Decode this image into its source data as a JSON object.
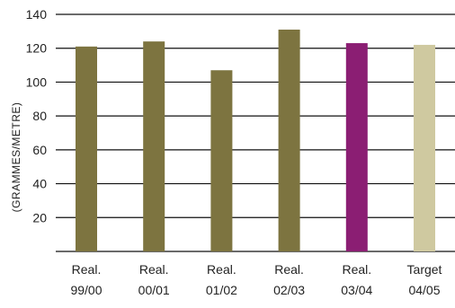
{
  "chart_data": {
    "type": "bar",
    "ylabel": "(GRAMMES/METRE)",
    "ylim": [
      0,
      140
    ],
    "yticks": [
      20,
      40,
      60,
      80,
      100,
      120,
      140
    ],
    "grid": true,
    "categories": [
      {
        "line1": "Real.",
        "line2": "99/00"
      },
      {
        "line1": "Real.",
        "line2": "00/01"
      },
      {
        "line1": "Real.",
        "line2": "01/02"
      },
      {
        "line1": "Real.",
        "line2": "02/03"
      },
      {
        "line1": "Real.",
        "line2": "03/04"
      },
      {
        "line1": "Target",
        "line2": "04/05"
      }
    ],
    "values": [
      121,
      124,
      107,
      131,
      123,
      122
    ],
    "colors": [
      "#7d7440",
      "#7d7440",
      "#7d7440",
      "#7d7440",
      "#8b1e73",
      "#cfc9a0"
    ]
  }
}
